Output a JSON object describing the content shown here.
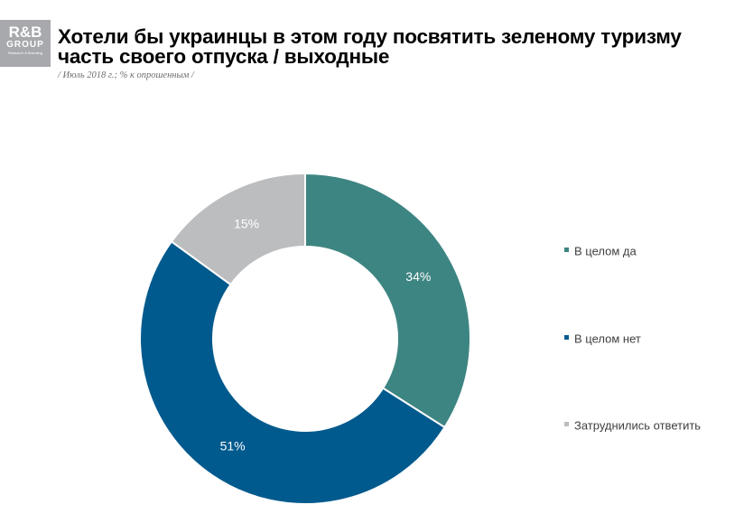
{
  "logo": {
    "main": "R&B",
    "sub": "GROUP",
    "tagline": "Research & Branding"
  },
  "title_line1": "Хотели бы украинцы в этом году посвятить зеленому туризму",
  "title_line2": "часть своего отпуска / выходные",
  "subtitle": "/ Июль 2018 г.; % к опрошенным /",
  "chart_data": {
    "type": "pie",
    "variant": "donut",
    "title": "Хотели бы украинцы в этом году посвятить зеленому туризму часть своего отпуска / выходные",
    "unit": "%",
    "categories": [
      "В целом да",
      "В целом нет",
      "Затруднились ответить"
    ],
    "values": [
      34,
      51,
      15
    ],
    "labels": [
      "34%",
      "51%",
      "15%"
    ],
    "colors": [
      "#3d8582",
      "#005a8d",
      "#bcbdbf"
    ],
    "label_colors": [
      "#ffffff",
      "#ffffff",
      "#ffffff"
    ],
    "legend": "right",
    "start_angle_deg": 0,
    "direction": "clockwise"
  }
}
